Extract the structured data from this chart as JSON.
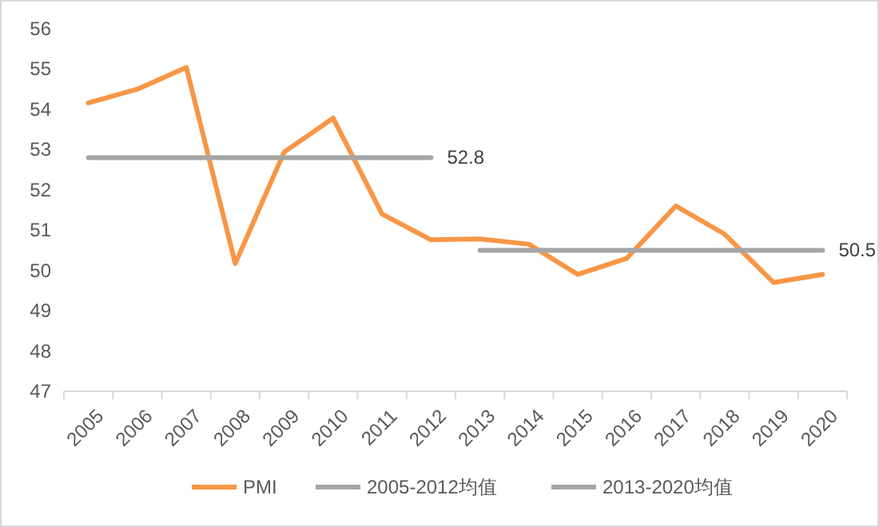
{
  "chart_data": {
    "type": "line",
    "categories": [
      "2005",
      "2006",
      "2007",
      "2008",
      "2009",
      "2010",
      "2011",
      "2012",
      "2013",
      "2014",
      "2015",
      "2016",
      "2017",
      "2018",
      "2019",
      "2020"
    ],
    "series": [
      {
        "name": "PMI",
        "color": "#f79646",
        "values": [
          54.16,
          54.5,
          55.04,
          50.17,
          52.94,
          53.78,
          51.4,
          50.76,
          50.78,
          50.65,
          49.9,
          50.3,
          51.6,
          50.9,
          49.7,
          49.9
        ]
      },
      {
        "name": "2005-2012均值",
        "color": "#a5a5a5",
        "values": [
          52.8,
          52.8,
          52.8,
          52.8,
          52.8,
          52.8,
          52.8,
          52.8,
          null,
          null,
          null,
          null,
          null,
          null,
          null,
          null
        ],
        "value_labels": [
          null,
          null,
          null,
          null,
          null,
          null,
          null,
          "52.8",
          null,
          null,
          null,
          null,
          null,
          null,
          null,
          null
        ]
      },
      {
        "name": "2013-2020均值",
        "color": "#a5a5a5",
        "values": [
          null,
          null,
          null,
          null,
          null,
          null,
          null,
          null,
          50.5,
          50.5,
          50.5,
          50.5,
          50.5,
          50.5,
          50.5,
          50.5
        ],
        "value_labels": [
          null,
          null,
          null,
          null,
          null,
          null,
          null,
          null,
          null,
          null,
          null,
          null,
          null,
          null,
          null,
          "50.5"
        ]
      }
    ],
    "ylim": [
      47,
      56
    ],
    "yticks": [
      47,
      48,
      49,
      50,
      51,
      52,
      53,
      54,
      55,
      56
    ],
    "grid": false,
    "legend": "bottom",
    "marker": "none",
    "line_style": "solid"
  }
}
